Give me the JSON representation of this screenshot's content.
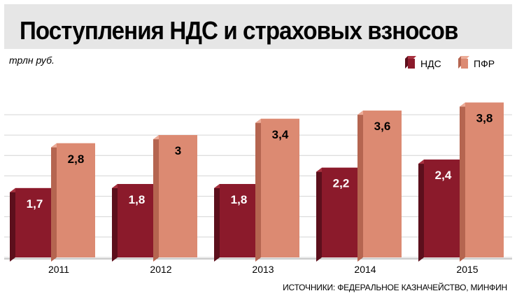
{
  "title": "Поступления НДС и страховых взносов",
  "unit_label": "трлн руб.",
  "source": "ИСТОЧНИКИ: ФЕДЕРАЛЬНОЕ КАЗНАЧЕЙСТВО, МИНФИН",
  "colors": {
    "nds_front": "#8b1a2b",
    "nds_side": "#5c0f1c",
    "nds_top": "#a7313f",
    "pfr_front": "#dc8a72",
    "pfr_side": "#b56550",
    "pfr_top": "#ecab97",
    "grid": "#d4d4d4",
    "title_band": "#e6e6e6"
  },
  "chart_data": {
    "type": "bar",
    "title": "Поступления НДС и страховых взносов",
    "ylabel": "трлн руб.",
    "xlabel": "",
    "categories": [
      "2011",
      "2012",
      "2013",
      "2014",
      "2015"
    ],
    "series": [
      {
        "name": "НДС",
        "values": [
          1.7,
          1.8,
          1.8,
          2.2,
          2.4
        ],
        "labels": [
          "1,7",
          "1,8",
          "1,8",
          "2,2",
          "2,4"
        ]
      },
      {
        "name": "ПФР",
        "values": [
          2.8,
          3.0,
          3.4,
          3.6,
          3.8
        ],
        "labels": [
          "2,8",
          "3",
          "3,4",
          "3,6",
          "3,8"
        ]
      }
    ],
    "ylim": [
      0,
      4
    ],
    "grid": true,
    "legend": "top-right"
  }
}
